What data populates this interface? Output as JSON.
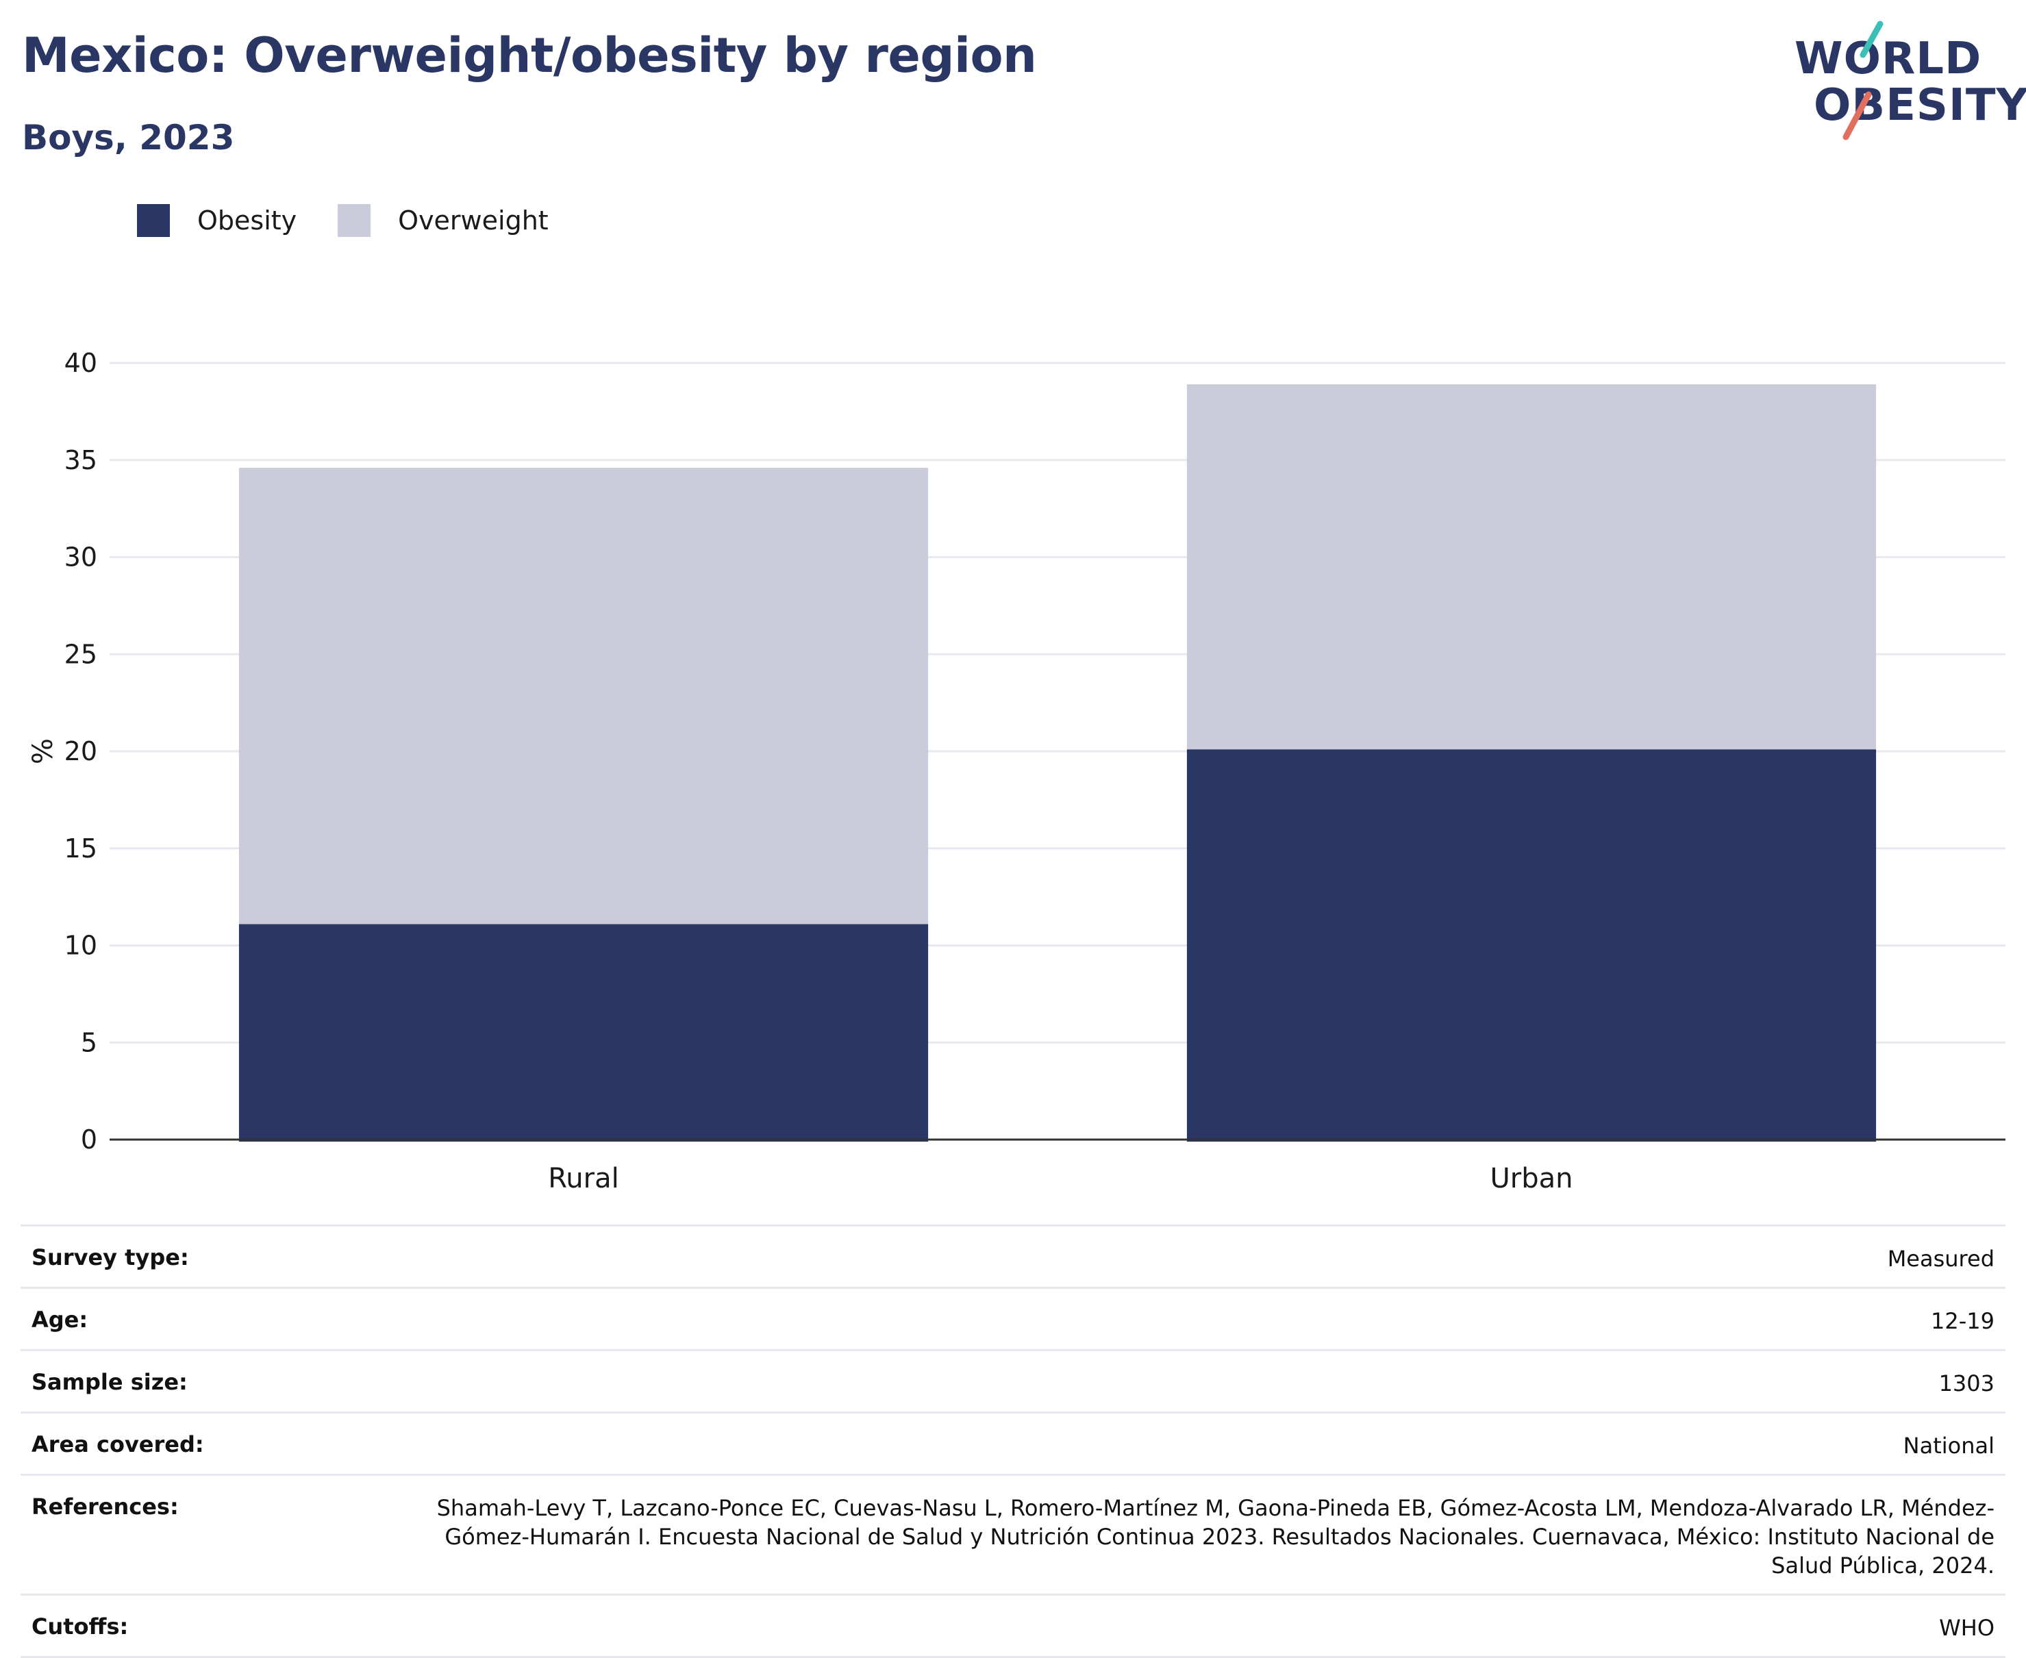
{
  "header": {
    "title": "Mexico: Overweight/obesity by region",
    "subtitle": "Boys, 2023"
  },
  "logo": {
    "line1": "WORLD",
    "line2": "OBESITY",
    "accent_teal": "#3bbfb6",
    "accent_coral": "#e06f5e"
  },
  "colors": {
    "obesity": "#2a3664",
    "overweight": "#cacdd9",
    "grid": "#e8e9ee",
    "axis": "#333333"
  },
  "chart_data": {
    "type": "bar",
    "stacked": true,
    "categories": [
      "Rural",
      "Urban"
    ],
    "series": [
      {
        "name": "Obesity",
        "values": [
          11.1,
          20.1
        ]
      },
      {
        "name": "Overweight",
        "values": [
          23.5,
          18.8
        ]
      }
    ],
    "ylabel": "%",
    "ylim": [
      0,
      40
    ],
    "yticks": [
      0,
      5,
      10,
      15,
      20,
      25,
      30,
      35,
      40
    ],
    "grid": true,
    "legend": "top-left"
  },
  "meta": [
    {
      "label": "Survey type:",
      "value": "Measured"
    },
    {
      "label": "Age:",
      "value": "12-19"
    },
    {
      "label": "Sample size:",
      "value": "1303"
    },
    {
      "label": "Area covered:",
      "value": "National"
    },
    {
      "label": "References:",
      "value": "Shamah-Levy T, Lazcano-Ponce EC, Cuevas-Nasu L, Romero-Martínez M, Gaona-Pineda EB, Gómez-Acosta LM, Mendoza-Alvarado LR, Méndez-Gómez-Humarán I. Encuesta Nacional de Salud y Nutrición Continua 2023. Resultados Nacionales. Cuernavaca, México: Instituto Nacional de Salud Pública, 2024."
    },
    {
      "label": "Cutoffs:",
      "value": "WHO"
    }
  ]
}
